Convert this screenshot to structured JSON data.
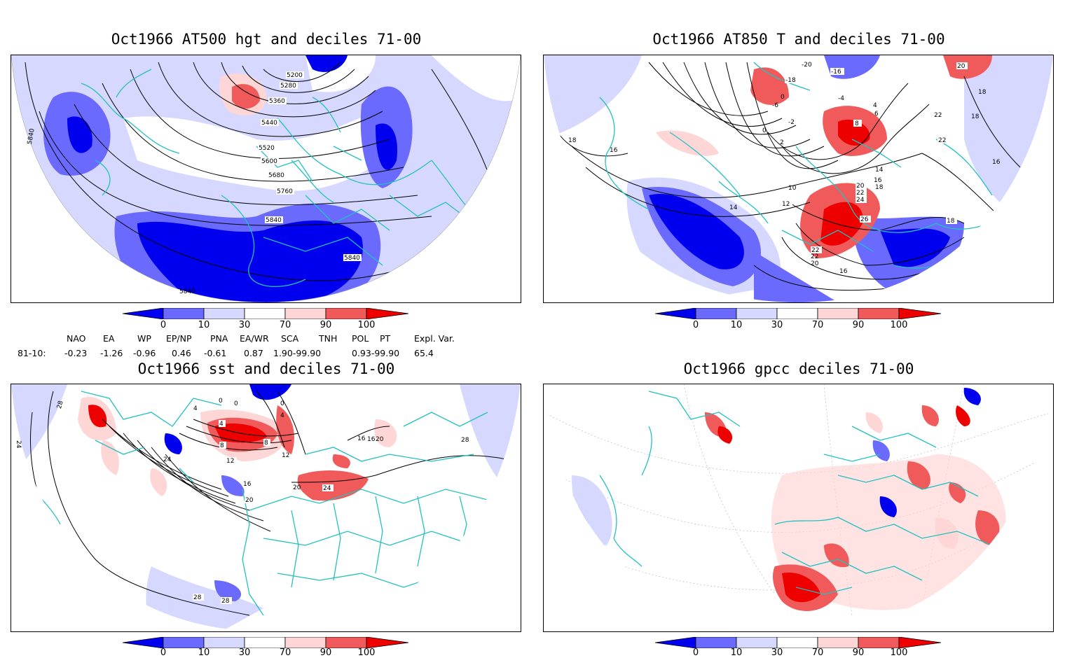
{
  "panels": [
    {
      "id": "hgt",
      "title": "Oct1966  AT500 hgt and deciles 71-00",
      "contour_labels": [
        "5200",
        "5280",
        "5360",
        "5440",
        "5520",
        "5600",
        "5680",
        "5760",
        "5840",
        "5840",
        "5840",
        "5840"
      ]
    },
    {
      "id": "t850",
      "title": "Oct1966  AT850 T and deciles 71-00",
      "contour_labels": [
        "-20",
        "-16",
        "-18",
        "0",
        "-6",
        "-4",
        "-2",
        "0",
        "2",
        "4",
        "6",
        "8",
        "10",
        "12",
        "14",
        "14",
        "16",
        "16",
        "18",
        "18",
        "20",
        "22",
        "22",
        "24",
        "26",
        "22",
        "20",
        "18",
        "16",
        "18",
        "22",
        "22",
        "16",
        "18",
        "20"
      ]
    },
    {
      "id": "sst",
      "title": "Oct1966  sst and deciles 71-00",
      "contour_labels": [
        "28",
        "24",
        "0",
        "0",
        "0",
        "4",
        "4",
        "4",
        "8",
        "8",
        "12",
        "12",
        "16",
        "16",
        "20",
        "20",
        "24",
        "24",
        "28",
        "28",
        "28",
        "16",
        "20"
      ]
    },
    {
      "id": "gpcc",
      "title": "Oct1966  gpcc deciles 71-00",
      "contour_labels": []
    }
  ],
  "colorbar": {
    "ticks": [
      "0",
      "10",
      "30",
      "70",
      "90",
      "100"
    ],
    "colors": [
      "#0000ee",
      "#6a6aff",
      "#d6d8ff",
      "#ffffff",
      "#ffd6d6",
      "#f05a5a",
      "#ee0000"
    ]
  },
  "indices": {
    "row_label": "81-10:",
    "headers": [
      "NAO",
      "EA",
      "WP",
      "EP/NP",
      "PNA",
      "EA/WR",
      "SCA",
      "TNH",
      "POL",
      "PT",
      "Expl. Var."
    ],
    "values": [
      "-0.23",
      "-1.26",
      "-0.96",
      "0.46",
      "-0.61",
      "0.87",
      "1.90-99.90",
      "0.93-99.90",
      "65.4"
    ]
  }
}
